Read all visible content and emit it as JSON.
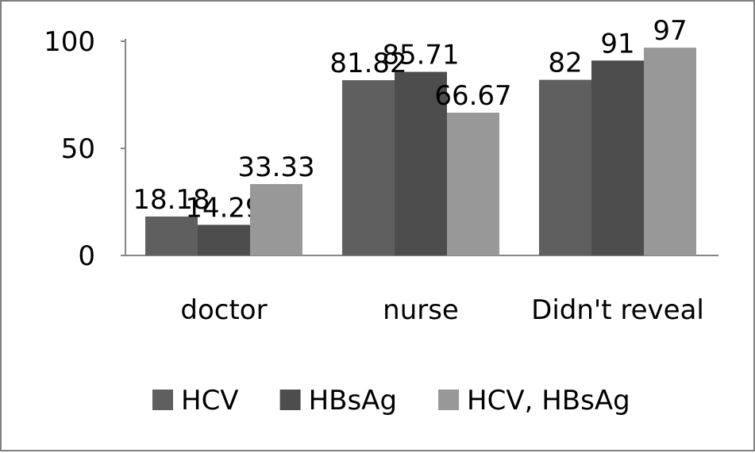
{
  "chart_data": {
    "type": "bar",
    "title": "",
    "xlabel": "",
    "ylabel": "",
    "categories": [
      "doctor",
      "nurse",
      "Didn't reveal"
    ],
    "series": [
      {
        "name": "HCV",
        "values": [
          18.18,
          81.82,
          82
        ],
        "labels": [
          "18.18",
          "81.82",
          "82"
        ],
        "color": "#5f5f5f"
      },
      {
        "name": "HBsAg",
        "values": [
          14.29,
          85.71,
          91
        ],
        "labels": [
          "14.29",
          "85.71",
          "91"
        ],
        "color": "#4d4d4d"
      },
      {
        "name": "HCV, HBsAg",
        "values": [
          33.33,
          66.67,
          97
        ],
        "labels": [
          "33.33",
          "66.67",
          "97"
        ],
        "color": "#989898"
      }
    ],
    "ylim": [
      0,
      100
    ],
    "yticks": [
      0,
      50,
      100
    ],
    "grid": false,
    "legend_position": "bottom",
    "axis_color": "#868686"
  }
}
